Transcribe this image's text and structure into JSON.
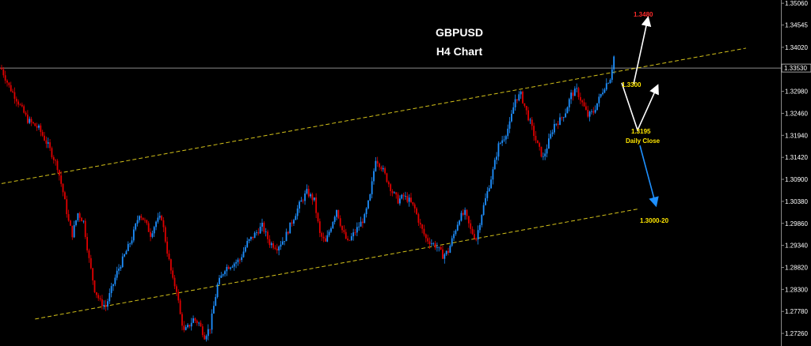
{
  "header": {
    "symbol": "GBPUSD",
    "timeframe": "H4 Chart"
  },
  "current_price_label": "1.33530",
  "chart_data": {
    "type": "candlestick",
    "title": "GBPUSD",
    "subtitle": "H4 Chart",
    "ylim": [
      1.27,
      1.351
    ],
    "y_ticks": [
      "1.35060",
      "1.34545",
      "1.34020",
      "1.33530",
      "1.32980",
      "1.32460",
      "1.31940",
      "1.31420",
      "1.30900",
      "1.30380",
      "1.29860",
      "1.29340",
      "1.28820",
      "1.28300",
      "1.27780",
      "1.27260"
    ],
    "candle_colors": {
      "up": "#1e90ff",
      "down": "#e00000"
    },
    "close_path": [
      [
        0,
        1.335
      ],
      [
        4,
        1.331
      ],
      [
        8,
        1.328
      ],
      [
        14,
        1.323
      ],
      [
        20,
        1.321
      ],
      [
        25,
        1.317
      ],
      [
        30,
        1.312
      ],
      [
        33,
        1.306
      ],
      [
        36,
        1.299
      ],
      [
        38,
        1.296
      ],
      [
        41,
        1.301
      ],
      [
        44,
        1.299
      ],
      [
        47,
        1.29
      ],
      [
        50,
        1.283
      ],
      [
        53,
        1.28
      ],
      [
        56,
        1.279
      ],
      [
        59,
        1.283
      ],
      [
        62,
        1.287
      ],
      [
        66,
        1.291
      ],
      [
        70,
        1.295
      ],
      [
        74,
        1.301
      ],
      [
        77,
        1.299
      ],
      [
        80,
        1.296
      ],
      [
        83,
        1.299
      ],
      [
        86,
        1.3
      ],
      [
        89,
        1.292
      ],
      [
        92,
        1.285
      ],
      [
        94,
        1.283
      ],
      [
        96,
        1.277
      ],
      [
        98,
        1.273
      ],
      [
        100,
        1.274
      ],
      [
        103,
        1.276
      ],
      [
        106,
        1.275
      ],
      [
        109,
        1.272
      ],
      [
        112,
        1.274
      ],
      [
        116,
        1.284
      ],
      [
        120,
        1.288
      ],
      [
        124,
        1.289
      ],
      [
        128,
        1.29
      ],
      [
        132,
        1.294
      ],
      [
        136,
        1.296
      ],
      [
        140,
        1.298
      ],
      [
        144,
        1.294
      ],
      [
        148,
        1.293
      ],
      [
        152,
        1.295
      ],
      [
        156,
        1.299
      ],
      [
        160,
        1.303
      ],
      [
        164,
        1.306
      ],
      [
        168,
        1.304
      ],
      [
        171,
        1.296
      ],
      [
        174,
        1.294
      ],
      [
        177,
        1.298
      ],
      [
        180,
        1.302
      ],
      [
        183,
        1.297
      ],
      [
        186,
        1.294
      ],
      [
        189,
        1.296
      ],
      [
        192,
        1.298
      ],
      [
        195,
        1.3
      ],
      [
        198,
        1.305
      ],
      [
        201,
        1.314
      ],
      [
        204,
        1.312
      ],
      [
        207,
        1.309
      ],
      [
        210,
        1.306
      ],
      [
        213,
        1.304
      ],
      [
        216,
        1.305
      ],
      [
        219,
        1.304
      ],
      [
        222,
        1.302
      ],
      [
        225,
        1.298
      ],
      [
        228,
        1.295
      ],
      [
        231,
        1.294
      ],
      [
        234,
        1.293
      ],
      [
        237,
        1.291
      ],
      [
        240,
        1.292
      ],
      [
        243,
        1.296
      ],
      [
        246,
        1.3
      ],
      [
        249,
        1.301
      ],
      [
        252,
        1.297
      ],
      [
        255,
        1.295
      ],
      [
        258,
        1.301
      ],
      [
        261,
        1.306
      ],
      [
        264,
        1.311
      ],
      [
        267,
        1.317
      ],
      [
        270,
        1.319
      ],
      [
        273,
        1.322
      ],
      [
        276,
        1.328
      ],
      [
        279,
        1.329
      ],
      [
        282,
        1.325
      ],
      [
        285,
        1.321
      ],
      [
        288,
        1.317
      ],
      [
        291,
        1.314
      ],
      [
        294,
        1.318
      ],
      [
        297,
        1.322
      ],
      [
        300,
        1.323
      ],
      [
        303,
        1.325
      ],
      [
        306,
        1.329
      ],
      [
        309,
        1.33
      ],
      [
        312,
        1.327
      ],
      [
        315,
        1.324
      ],
      [
        318,
        1.325
      ],
      [
        321,
        1.328
      ],
      [
        324,
        1.331
      ],
      [
        327,
        1.333
      ],
      [
        329,
        1.338
      ]
    ],
    "trendlines": [
      {
        "name": "upper channel",
        "color": "#d4c21a",
        "points": [
          [
            0,
            1.308
          ],
          [
            400,
            1.34
          ]
        ]
      },
      {
        "name": "lower channel",
        "color": "#d4c21a",
        "points": [
          [
            18,
            1.276
          ],
          [
            342,
            1.302
          ]
        ]
      }
    ],
    "hline": {
      "value": 1.3353,
      "color": "#b8b8b8"
    },
    "annotations": [
      {
        "text": "1.3480",
        "color": "#ff2b2b"
      },
      {
        "text": "1.3300",
        "color": "#ffe600"
      },
      {
        "text": "1.3195",
        "color": "#ffe600"
      },
      {
        "text": "Daily Close",
        "color": "#ffe600"
      },
      {
        "text": "1.3000-20",
        "color": "#ffe600"
      }
    ],
    "scenario_arrows": [
      {
        "from": 1.3315,
        "to": 1.347,
        "color": "#ffffff"
      },
      {
        "from": 1.3195,
        "to": 1.331,
        "color": "#ffffff"
      },
      {
        "from": 1.3185,
        "to": 1.303,
        "color": "#1e90ff"
      }
    ]
  }
}
